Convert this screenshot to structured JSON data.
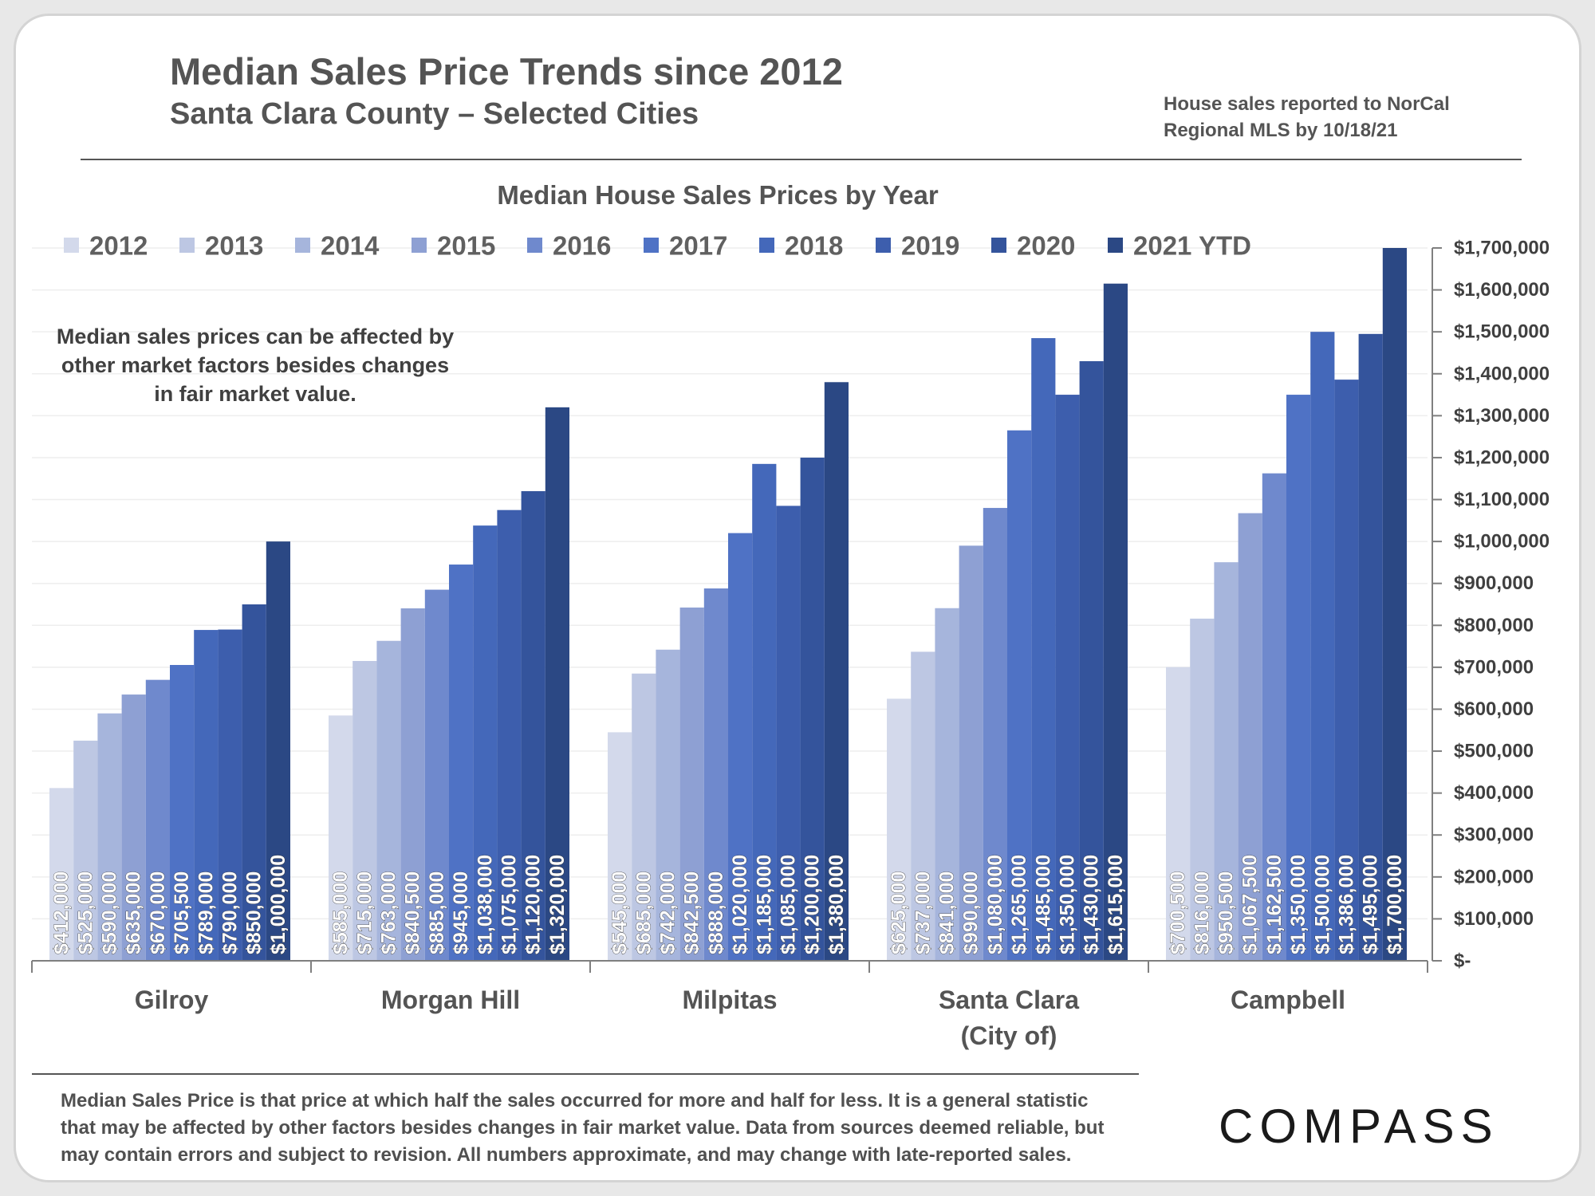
{
  "header": {
    "title": "Median Sales Price Trends since 2012",
    "subtitle": "Santa Clara County – Selected Cities",
    "note_line1": "House sales reported to NorCal",
    "note_line2": "Regional MLS by 10/18/21"
  },
  "annotation": {
    "line1": "Median sales prices can be affected by",
    "line2": "other market factors besides changes",
    "line3": "in fair market value."
  },
  "footer": {
    "line1": "Median Sales Price is that price at which half the sales occurred for more and half for less. It is a general statistic",
    "line2": "that may be affected by other factors besides changes in fair market value. Data from sources deemed reliable, but",
    "line3": "may contain errors and subject to revision.  All numbers approximate, and may change with late-reported sales.",
    "logo": "COMPASS"
  },
  "chart_data": {
    "type": "bar",
    "title": "Median House Sales Prices by Year",
    "categories": [
      "Gilroy",
      "Morgan Hill",
      "Milpitas",
      "Santa Clara|(City of)",
      "Campbell"
    ],
    "series": [
      {
        "name": "2012",
        "color": "#d3d9eb",
        "values": [
          412000,
          585000,
          545000,
          625000,
          700500
        ]
      },
      {
        "name": "2013",
        "color": "#bdc7e3",
        "values": [
          525000,
          715000,
          685000,
          737000,
          816000
        ]
      },
      {
        "name": "2014",
        "color": "#a6b5dc",
        "values": [
          590000,
          763000,
          742000,
          841000,
          950500
        ]
      },
      {
        "name": "2015",
        "color": "#8ea0d3",
        "values": [
          635000,
          840500,
          842500,
          990000,
          1067500
        ]
      },
      {
        "name": "2016",
        "color": "#6f89cd",
        "values": [
          670000,
          885000,
          888000,
          1080000,
          1162500
        ]
      },
      {
        "name": "2017",
        "color": "#4f72c5",
        "values": [
          705500,
          945000,
          1020000,
          1265000,
          1350000
        ]
      },
      {
        "name": "2018",
        "color": "#4468ba",
        "values": [
          789000,
          1038000,
          1185000,
          1485000,
          1500000
        ]
      },
      {
        "name": "2019",
        "color": "#3d5ead",
        "values": [
          790000,
          1075000,
          1085000,
          1350000,
          1386000
        ]
      },
      {
        "name": "2020",
        "color": "#34549c",
        "values": [
          850000,
          1120000,
          1200000,
          1430000,
          1495000
        ]
      },
      {
        "name": "2021 YTD",
        "color": "#2b4884",
        "values": [
          1000000,
          1320000,
          1380000,
          1615000,
          1700000
        ]
      }
    ],
    "data_labels": [
      [
        "$412,000",
        "$525,000",
        "$590,000",
        "$635,000",
        "$670,000",
        "$705,500",
        "$789,000",
        "$790,000",
        "$850,000",
        "$1,000,000"
      ],
      [
        "$585,000",
        "$715,000",
        "$763,000",
        "$840,500",
        "$885,000",
        "$945,000",
        "$1,038,000",
        "$1,075,000",
        "$1,120,000",
        "$1,320,000"
      ],
      [
        "$545,000",
        "$685,000",
        "$742,000",
        "$842,500",
        "$888,000",
        "$1,020,000",
        "$1,185,000",
        "$1,085,000",
        "$1,200,000",
        "$1,380,000"
      ],
      [
        "$625,000",
        "$737,000",
        "$841,000",
        "$990,000",
        "$1,080,000",
        "$1,265,000",
        "$1,485,000",
        "$1,350,000",
        "$1,430,000",
        "$1,615,000"
      ],
      [
        "$700,500",
        "$816,000",
        "$950,500",
        "$1,067,500",
        "$1,162,500",
        "$1,350,000",
        "$1,500,000",
        "$1,386,000",
        "$1,495,000",
        "$1,700,000"
      ]
    ],
    "y_ticks": [
      {
        "v": 0,
        "label": "$-"
      },
      {
        "v": 100000,
        "label": "$100,000"
      },
      {
        "v": 200000,
        "label": "$200,000"
      },
      {
        "v": 300000,
        "label": "$300,000"
      },
      {
        "v": 400000,
        "label": "$400,000"
      },
      {
        "v": 500000,
        "label": "$500,000"
      },
      {
        "v": 600000,
        "label": "$600,000"
      },
      {
        "v": 700000,
        "label": "$700,000"
      },
      {
        "v": 800000,
        "label": "$800,000"
      },
      {
        "v": 900000,
        "label": "$900,000"
      },
      {
        "v": 1000000,
        "label": "$1,000,000"
      },
      {
        "v": 1100000,
        "label": "$1,100,000"
      },
      {
        "v": 1200000,
        "label": "$1,200,000"
      },
      {
        "v": 1300000,
        "label": "$1,300,000"
      },
      {
        "v": 1400000,
        "label": "$1,400,000"
      },
      {
        "v": 1500000,
        "label": "$1,500,000"
      },
      {
        "v": 1600000,
        "label": "$1,600,000"
      },
      {
        "v": 1700000,
        "label": "$1,700,000"
      }
    ],
    "ylim": [
      0,
      1700000
    ],
    "y_axis_side": "right",
    "grid": true,
    "legend_position": "top"
  }
}
